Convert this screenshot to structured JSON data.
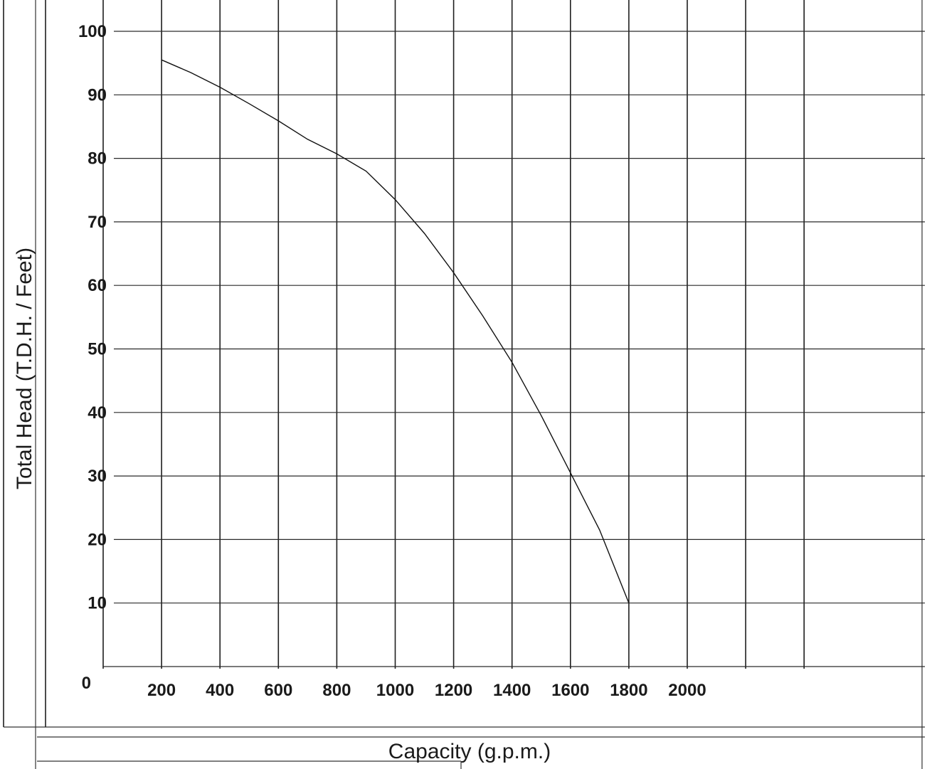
{
  "chart_data": {
    "type": "line",
    "xlabel": "Capacity (g.p.m.)",
    "ylabel": "Total Head (T.D.H. / Feet)",
    "xlim": [
      0,
      2200
    ],
    "ylim": [
      0,
      100
    ],
    "grid": true,
    "y_tick_labels": [
      "0",
      "10",
      "20",
      "30",
      "40",
      "50",
      "60",
      "70",
      "80",
      "90",
      "100"
    ],
    "x_tick_labels": [
      "200",
      "400",
      "600",
      "800",
      "1000",
      "1200",
      "1400",
      "1600",
      "1800",
      "2000"
    ],
    "series": [
      {
        "x": [
          200,
          300,
          400,
          500,
          600,
          700,
          800,
          900,
          1000,
          1100,
          1200,
          1300,
          1400,
          1500,
          1600,
          1700,
          1800
        ],
        "y": [
          95.5,
          93.5,
          91.2,
          88.6,
          85.9,
          83.0,
          80.7,
          78.0,
          73.5,
          68.2,
          62.0,
          55.2,
          47.9,
          39.5,
          30.5,
          21.5,
          10.0
        ]
      }
    ]
  }
}
